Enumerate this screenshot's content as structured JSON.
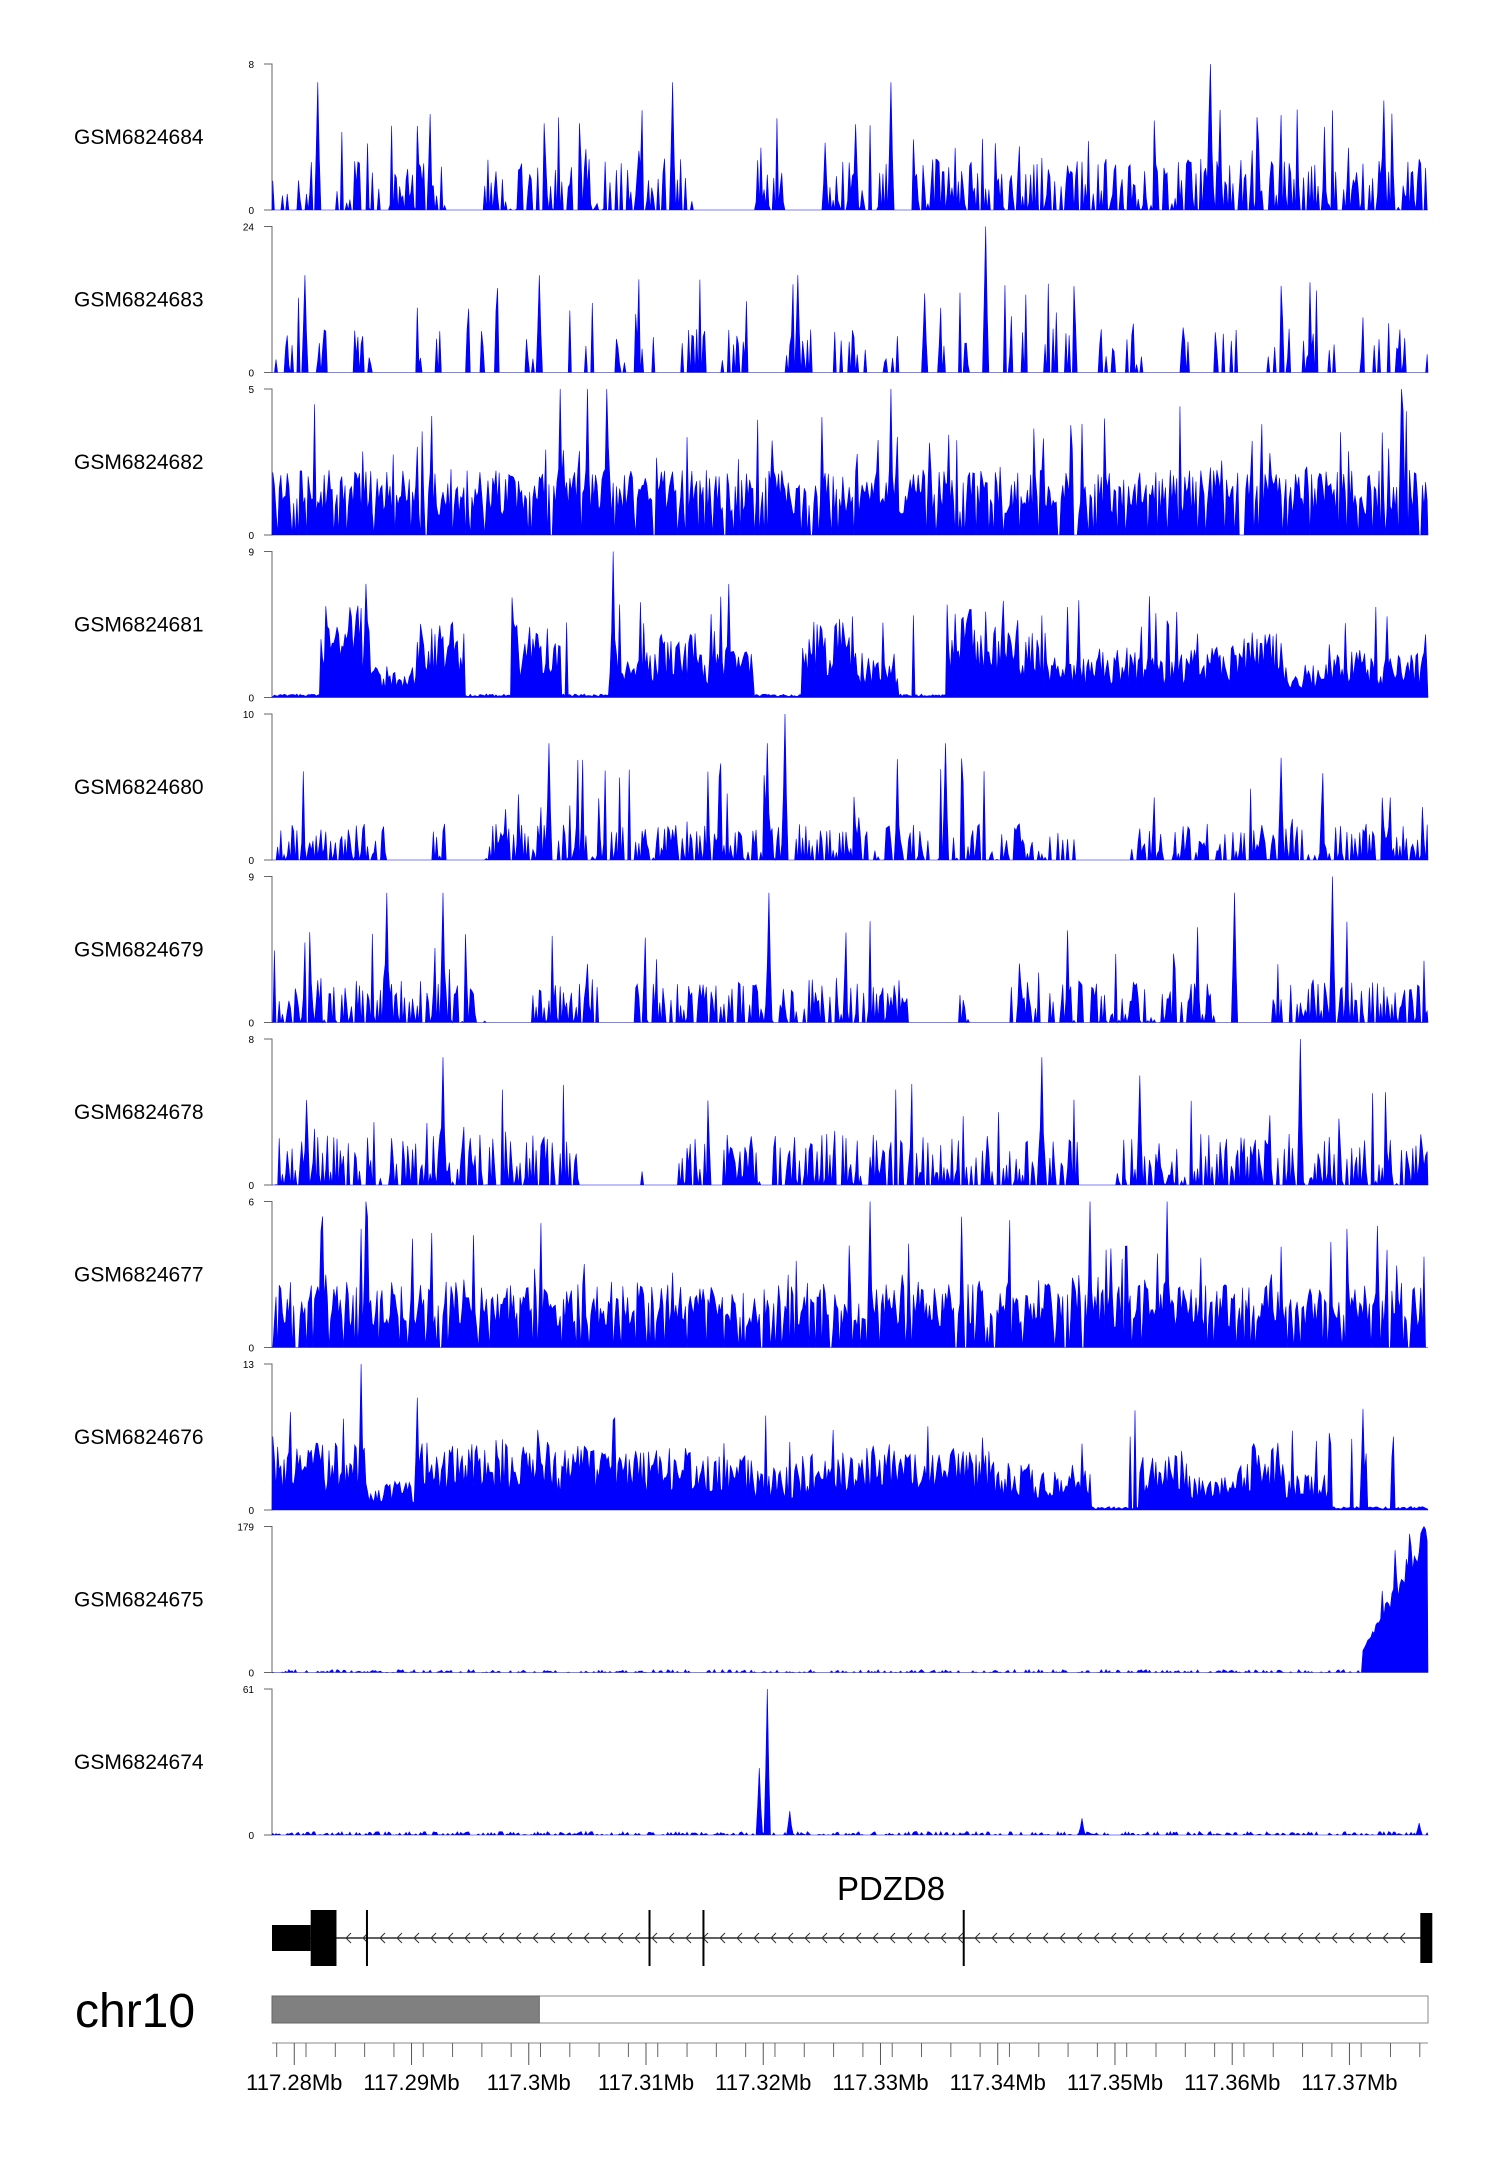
{
  "chart_data": {
    "type": "area",
    "title": "",
    "xlabel": "",
    "ylabel": "",
    "chromosome": "chr10",
    "gene": {
      "name": "PDZD8",
      "strand": "-",
      "start": 117.2781,
      "end": 117.3767,
      "exons": [
        117.2814,
        117.2862,
        117.3103,
        117.3149,
        117.3371,
        117.3763
      ]
    },
    "ideogram": {
      "highlight_start": 117.2781,
      "highlight_end": 117.3009,
      "end": 117.3767
    },
    "xlim": [
      117.2781,
      117.3767
    ],
    "x_ticks": [
      "117.28Mb",
      "117.29Mb",
      "117.3Mb",
      "117.31Mb",
      "117.32Mb",
      "117.33Mb",
      "117.34Mb",
      "117.35Mb",
      "117.36Mb",
      "117.37Mb"
    ],
    "x_tick_values": [
      117.28,
      117.29,
      117.3,
      117.31,
      117.32,
      117.33,
      117.34,
      117.35,
      117.36,
      117.37
    ],
    "series_color": "#0000ff",
    "series": [
      {
        "name": "GSM6824684",
        "ymin": "0",
        "ymax": "8",
        "max": 8,
        "pattern": "sparse",
        "seed": 11,
        "level": 0.35,
        "peaks": [
          {
            "x": 117.3582,
            "y": 8
          },
          {
            "x": 117.2819,
            "y": 7
          },
          {
            "x": 117.3122,
            "y": 7
          },
          {
            "x": 117.3309,
            "y": 7
          },
          {
            "x": 117.373,
            "y": 6
          }
        ]
      },
      {
        "name": "GSM6824683",
        "ymin": "0",
        "ymax": "24",
        "max": 24,
        "pattern": "spikes",
        "seed": 23,
        "level": 0.25,
        "peaks": [
          {
            "x": 117.339,
            "y": 24
          },
          {
            "x": 117.2808,
            "y": 16
          },
          {
            "x": 117.3009,
            "y": 16
          },
          {
            "x": 117.3229,
            "y": 16
          },
          {
            "x": 117.3338,
            "y": 13
          }
        ]
      },
      {
        "name": "GSM6824682",
        "ymin": "0",
        "ymax": "5",
        "max": 5,
        "pattern": "dense",
        "seed": 37,
        "level": 0.45,
        "peaks": [
          {
            "x": 117.3066,
            "y": 5
          },
          {
            "x": 117.305,
            "y": 5
          },
          {
            "x": 117.3027,
            "y": 5
          },
          {
            "x": 117.3309,
            "y": 5
          },
          {
            "x": 117.3745,
            "y": 5
          }
        ]
      },
      {
        "name": "GSM6824681",
        "ymin": "0",
        "ymax": "9",
        "max": 9,
        "pattern": "blocky",
        "seed": 41,
        "level": 0.45,
        "peaks": [
          {
            "x": 117.3072,
            "y": 9
          },
          {
            "x": 117.286,
            "y": 7
          },
          {
            "x": 117.3171,
            "y": 7
          },
          {
            "x": 117.3733,
            "y": 5
          }
        ]
      },
      {
        "name": "GSM6824680",
        "ymin": "0",
        "ymax": "10",
        "max": 10,
        "pattern": "sparse",
        "seed": 53,
        "level": 0.25,
        "peaks": [
          {
            "x": 117.3219,
            "y": 10
          },
          {
            "x": 117.3204,
            "y": 8
          },
          {
            "x": 117.3017,
            "y": 8
          },
          {
            "x": 117.3356,
            "y": 8
          },
          {
            "x": 117.3642,
            "y": 7
          }
        ]
      },
      {
        "name": "GSM6824679",
        "ymin": "0",
        "ymax": "9",
        "max": 9,
        "pattern": "sparse",
        "seed": 67,
        "level": 0.3,
        "peaks": [
          {
            "x": 117.3686,
            "y": 9
          },
          {
            "x": 117.2879,
            "y": 8
          },
          {
            "x": 117.2927,
            "y": 8
          },
          {
            "x": 117.3205,
            "y": 8
          },
          {
            "x": 117.3602,
            "y": 8
          }
        ]
      },
      {
        "name": "GSM6824678",
        "ymin": "0",
        "ymax": "8",
        "max": 8,
        "pattern": "sparse",
        "seed": 79,
        "level": 0.35,
        "peaks": [
          {
            "x": 117.3659,
            "y": 8
          },
          {
            "x": 117.2927,
            "y": 7
          },
          {
            "x": 117.3438,
            "y": 7
          },
          {
            "x": 117.3522,
            "y": 6
          }
        ]
      },
      {
        "name": "GSM6824677",
        "ymin": "0",
        "ymax": "6",
        "max": 6,
        "pattern": "dense",
        "seed": 83,
        "level": 0.45,
        "peaks": [
          {
            "x": 117.286,
            "y": 6
          },
          {
            "x": 117.3291,
            "y": 6
          },
          {
            "x": 117.3479,
            "y": 6
          },
          {
            "x": 117.3545,
            "y": 6
          },
          {
            "x": 117.3724,
            "y": 5
          }
        ]
      },
      {
        "name": "GSM6824676",
        "ymin": "0",
        "ymax": "13",
        "max": 13,
        "pattern": "blocky",
        "seed": 97,
        "level": 0.35,
        "peaks": [
          {
            "x": 117.2856,
            "y": 13
          },
          {
            "x": 117.2904,
            "y": 10
          },
          {
            "x": 117.3712,
            "y": 9
          },
          {
            "x": 117.3072,
            "y": 8
          }
        ]
      },
      {
        "name": "GSM6824675",
        "ymin": "0",
        "ymax": "179",
        "max": 179,
        "pattern": "ramp",
        "seed": 101,
        "level": 0.02,
        "peaks": [
          {
            "x": 117.3764,
            "y": 179
          },
          {
            "x": 117.3752,
            "y": 170
          },
          {
            "x": 117.374,
            "y": 150
          },
          {
            "x": 117.3728,
            "y": 100
          },
          {
            "x": 117.3718,
            "y": 40
          }
        ]
      },
      {
        "name": "GSM6824674",
        "ymin": "0",
        "ymax": "61",
        "max": 61,
        "pattern": "flat",
        "seed": 113,
        "level": 0.03,
        "peaks": [
          {
            "x": 117.3204,
            "y": 61
          },
          {
            "x": 117.3196,
            "y": 28
          },
          {
            "x": 117.3223,
            "y": 10
          },
          {
            "x": 117.3472,
            "y": 7
          },
          {
            "x": 117.376,
            "y": 5
          }
        ]
      }
    ]
  }
}
